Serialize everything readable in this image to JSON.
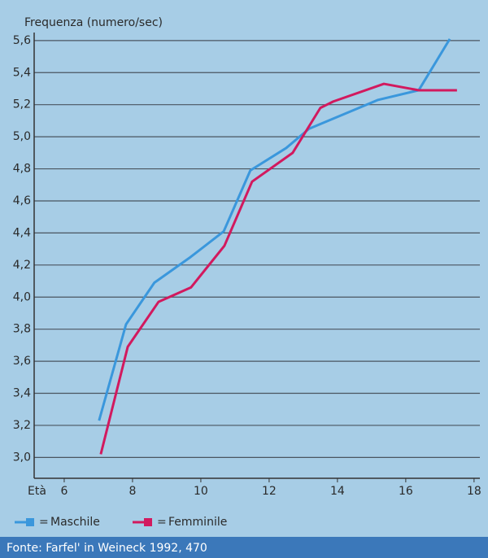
{
  "chart_data": {
    "type": "line",
    "title": "Frequenza (numero/sec)",
    "x_label": "Età",
    "xlim": [
      5.12,
      18.17
    ],
    "xticks": [
      6,
      8,
      10,
      12,
      14,
      16,
      18
    ],
    "ylim": [
      2.87,
      5.65
    ],
    "yticks": [
      {
        "value": 3.0,
        "label": "3,0"
      },
      {
        "value": 3.2,
        "label": "3,2"
      },
      {
        "value": 3.4,
        "label": "3,4"
      },
      {
        "value": 3.6,
        "label": "3,6"
      },
      {
        "value": 3.8,
        "label": "3,8"
      },
      {
        "value": 4.0,
        "label": "4,0"
      },
      {
        "value": 4.2,
        "label": "4,2"
      },
      {
        "value": 4.4,
        "label": "4,4"
      },
      {
        "value": 4.6,
        "label": "4,6"
      },
      {
        "value": 4.8,
        "label": "4,8"
      },
      {
        "value": 5.0,
        "label": "5,0"
      },
      {
        "value": 5.2,
        "label": "5,2"
      },
      {
        "value": 5.4,
        "label": "5,4"
      },
      {
        "value": 5.6,
        "label": "5,6"
      }
    ],
    "grid": true,
    "legend_sign": "=",
    "series": [
      {
        "name": "Maschile",
        "color": "#3a97dc",
        "x": [
          7.02,
          7.81,
          8.64,
          9.7,
          10.67,
          11.45,
          12.5,
          13.17,
          15.19,
          16.38,
          17.29
        ],
        "values": [
          3.23,
          3.83,
          4.09,
          4.25,
          4.41,
          4.79,
          4.93,
          5.05,
          5.23,
          5.29,
          5.61
        ]
      },
      {
        "name": "Femminile",
        "color": "#d2195e",
        "x": [
          7.07,
          7.86,
          8.76,
          9.71,
          10.69,
          11.5,
          12.69,
          13.5,
          13.88,
          15.36,
          16.38,
          17.5
        ],
        "values": [
          3.02,
          3.69,
          3.97,
          4.06,
          4.32,
          4.72,
          4.9,
          5.18,
          5.22,
          5.33,
          5.29,
          5.29
        ]
      }
    ],
    "source": "Fonte: Farfel' in Weineck 1992, 470"
  }
}
